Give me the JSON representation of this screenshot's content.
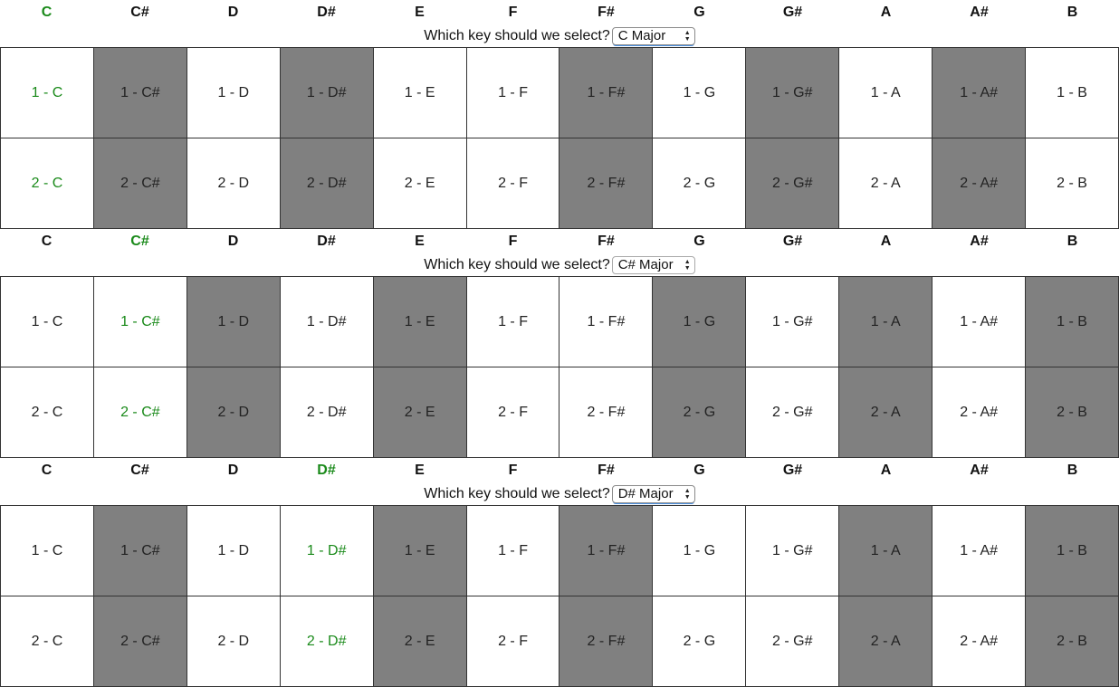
{
  "notes": [
    "C",
    "C#",
    "D",
    "D#",
    "E",
    "F",
    "F#",
    "G",
    "G#",
    "A",
    "A#",
    "B"
  ],
  "prompt": "Which key should we select?",
  "sections": [
    {
      "selected_key": "C Major",
      "active_note": "C",
      "dark_notes": [
        "C#",
        "D#",
        "F#",
        "G#",
        "A#"
      ],
      "rows": [
        [
          "1 - C",
          "1 - C#",
          "1 - D",
          "1 - D#",
          "1 - E",
          "1 - F",
          "1 - F#",
          "1 - G",
          "1 - G#",
          "1 - A",
          "1 - A#",
          "1 - B"
        ],
        [
          "2 - C",
          "2 - C#",
          "2 - D",
          "2 - D#",
          "2 - E",
          "2 - F",
          "2 - F#",
          "2 - G",
          "2 - G#",
          "2 - A",
          "2 - A#",
          "2 - B"
        ]
      ]
    },
    {
      "selected_key": "C# Major",
      "active_note": "C#",
      "dark_notes": [
        "D",
        "E",
        "G",
        "A",
        "B"
      ],
      "rows": [
        [
          "1 - C",
          "1 - C#",
          "1 - D",
          "1 - D#",
          "1 - E",
          "1 - F",
          "1 - F#",
          "1 - G",
          "1 - G#",
          "1 - A",
          "1 - A#",
          "1 - B"
        ],
        [
          "2 - C",
          "2 - C#",
          "2 - D",
          "2 - D#",
          "2 - E",
          "2 - F",
          "2 - F#",
          "2 - G",
          "2 - G#",
          "2 - A",
          "2 - A#",
          "2 - B"
        ]
      ]
    },
    {
      "selected_key": "D# Major",
      "active_note": "D#",
      "dark_notes": [
        "C#",
        "E",
        "F#",
        "A",
        "B"
      ],
      "rows": [
        [
          "1 - C",
          "1 - C#",
          "1 - D",
          "1 - D#",
          "1 - E",
          "1 - F",
          "1 - F#",
          "1 - G",
          "1 - G#",
          "1 - A",
          "1 - A#",
          "1 - B"
        ],
        [
          "2 - C",
          "2 - C#",
          "2 - D",
          "2 - D#",
          "2 - E",
          "2 - F",
          "2 - F#",
          "2 - G",
          "2 - G#",
          "2 - A",
          "2 - A#",
          "2 - B"
        ]
      ]
    }
  ],
  "colors": {
    "active_text": "#1a8a1a",
    "dark_cell": "#808080",
    "light_cell": "#ffffff"
  },
  "icons": {
    "select_arrows": "up-down-arrows-icon"
  }
}
